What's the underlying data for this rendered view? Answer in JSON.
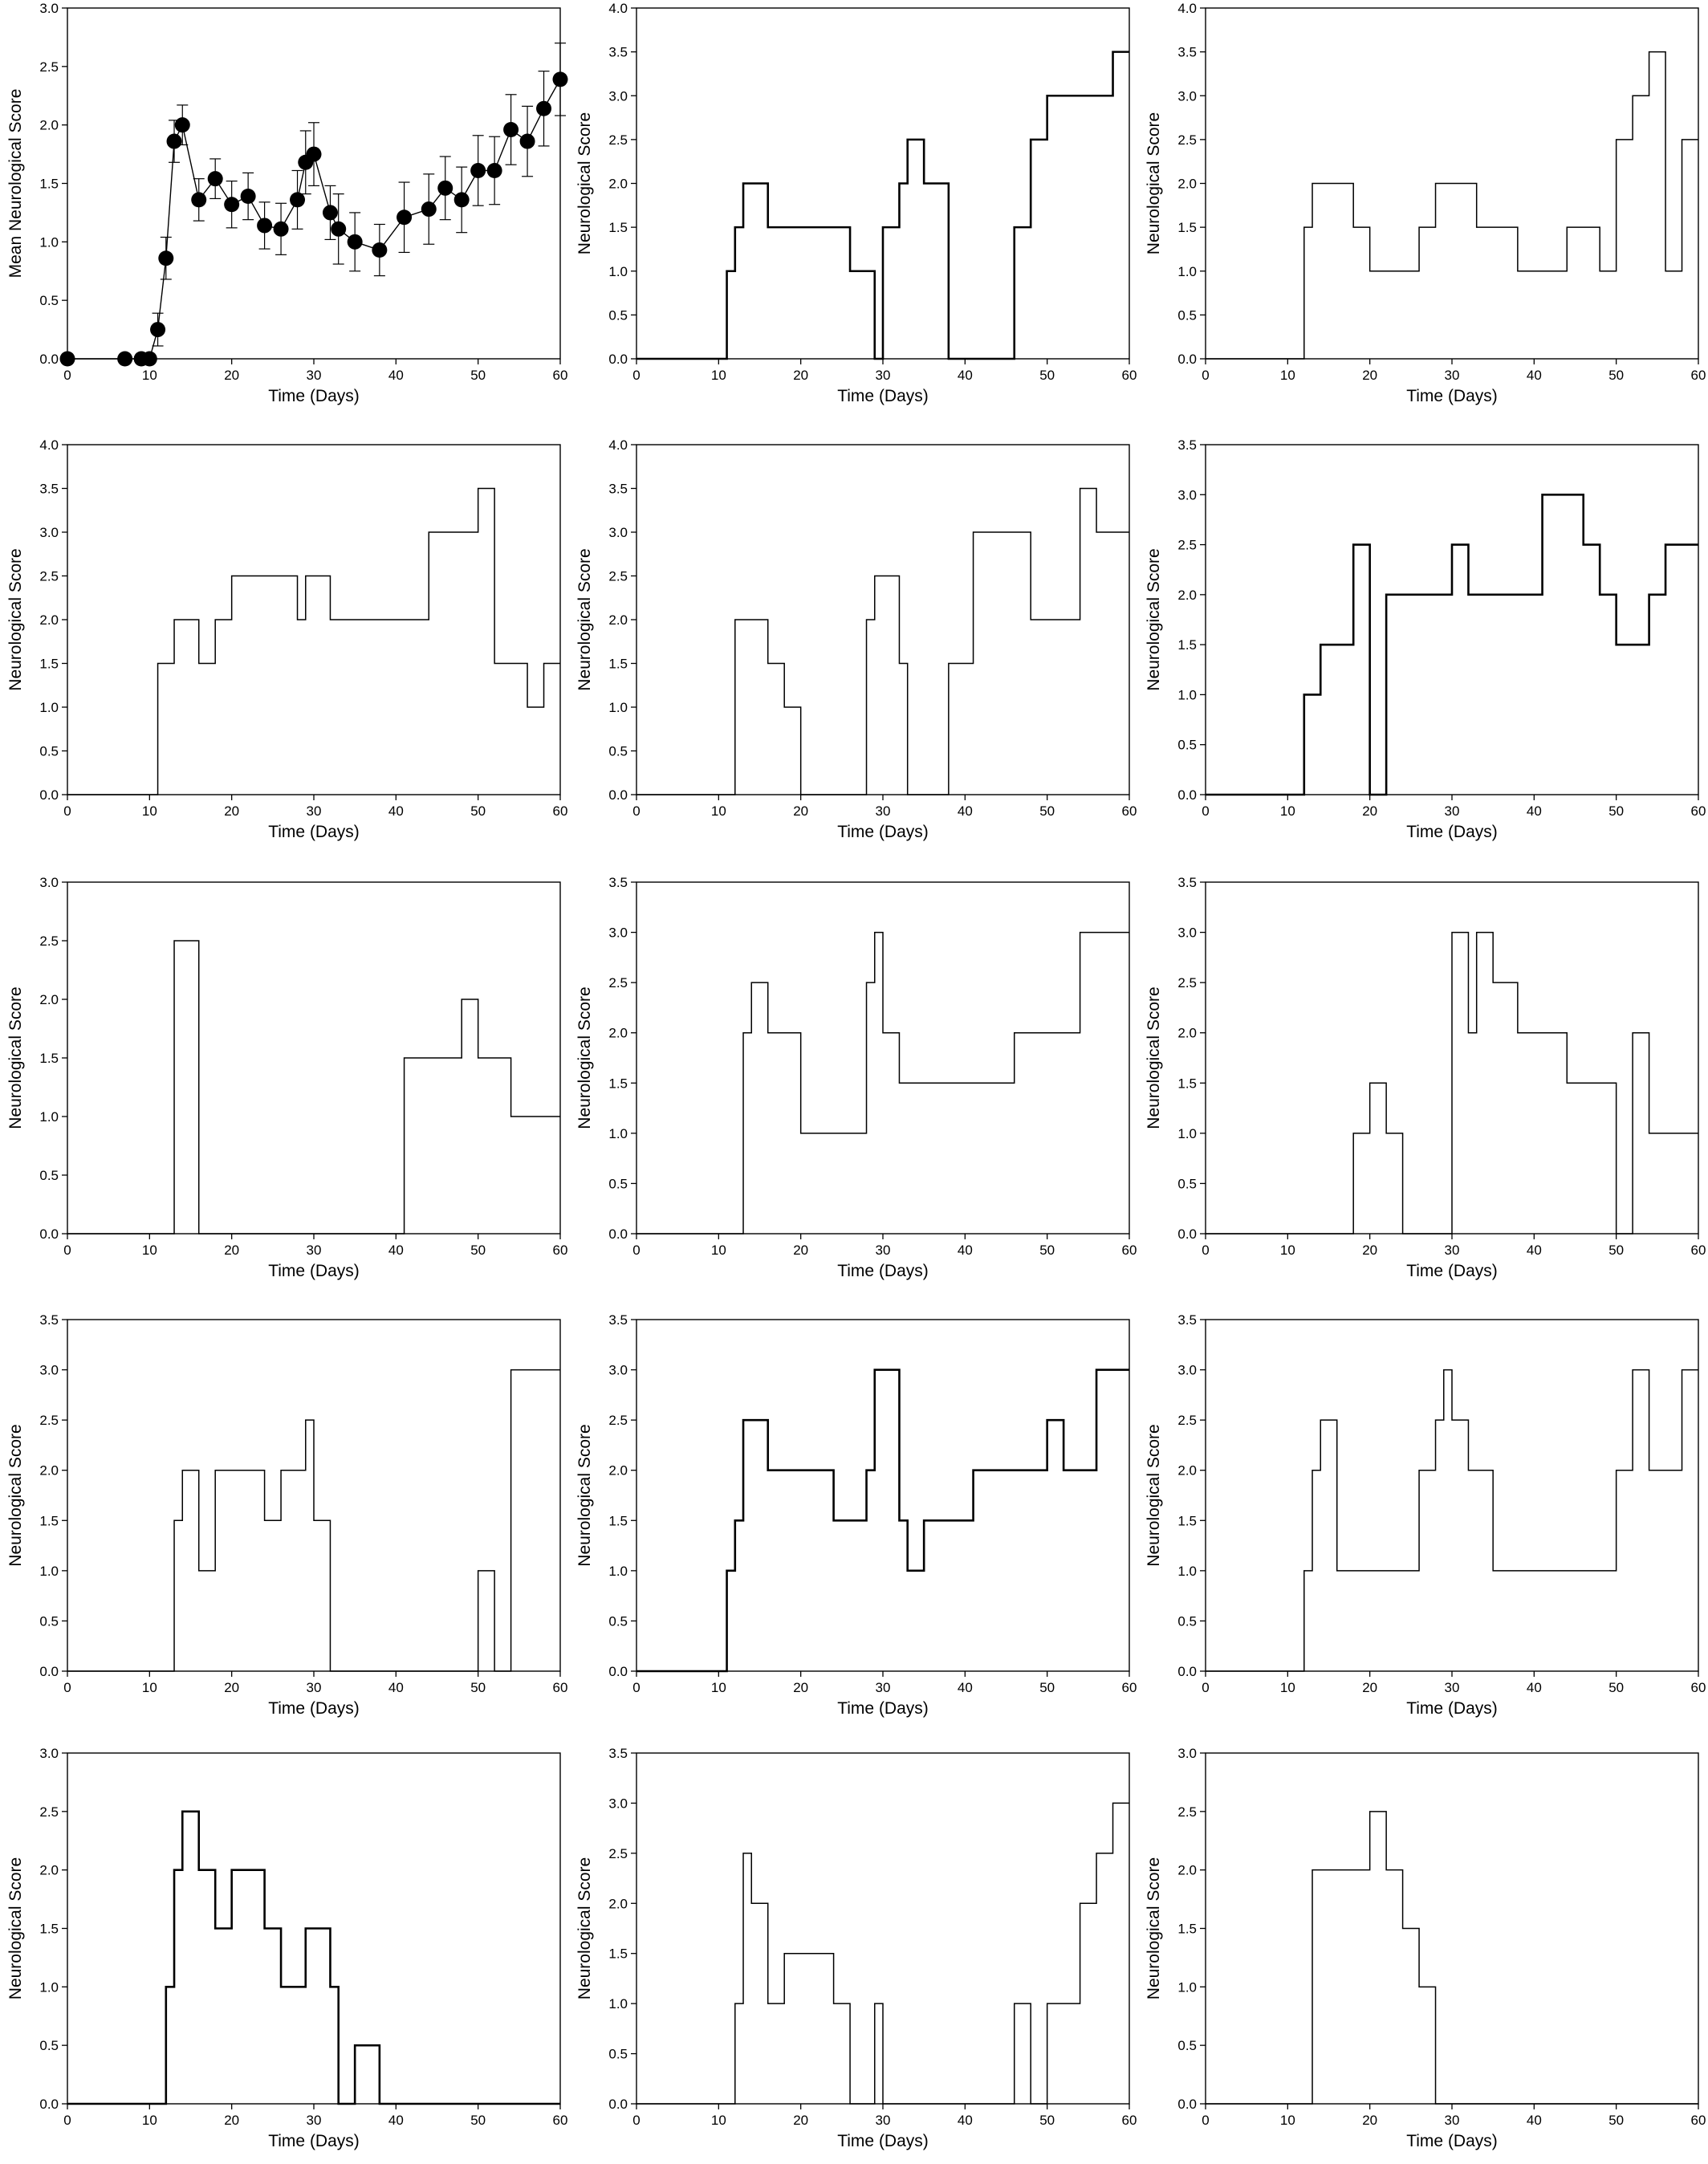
{
  "figure": {
    "description_free": true
  },
  "chart_data": [
    {
      "type": "line",
      "xlabel": "Time (Days)",
      "ylabel": "Mean Neurological Score",
      "xlim": [
        0,
        60
      ],
      "ylim": [
        0,
        3.0
      ],
      "xticks": [
        0,
        10,
        20,
        30,
        40,
        50,
        60
      ],
      "yticks": [
        0.0,
        0.5,
        1.0,
        1.5,
        2.0,
        2.5,
        3.0
      ],
      "x": [
        0,
        7,
        9,
        10,
        11,
        12,
        13,
        14,
        16,
        18,
        20,
        22,
        24,
        26,
        28,
        29,
        30,
        32,
        33,
        35,
        38,
        41,
        44,
        46,
        48,
        50,
        52,
        54,
        56,
        58,
        60
      ],
      "y": [
        0,
        0,
        0,
        0,
        0.25,
        0.86,
        1.86,
        2.0,
        1.36,
        1.54,
        1.32,
        1.39,
        1.14,
        1.11,
        1.36,
        1.68,
        1.75,
        1.25,
        1.11,
        1.0,
        0.93,
        1.21,
        1.28,
        1.46,
        1.36,
        1.61,
        1.61,
        1.96,
        1.86,
        2.14,
        2.39
      ],
      "error": [
        0,
        0,
        0,
        0,
        0.14,
        0.18,
        0.18,
        0.17,
        0.18,
        0.17,
        0.2,
        0.2,
        0.2,
        0.22,
        0.25,
        0.27,
        0.27,
        0.23,
        0.3,
        0.25,
        0.22,
        0.3,
        0.3,
        0.27,
        0.28,
        0.3,
        0.29,
        0.3,
        0.3,
        0.32,
        0.31
      ],
      "markers": true,
      "grid": false
    },
    {
      "type": "line",
      "step": true,
      "xlabel": "Time (Days)",
      "ylabel": "Neurological Score",
      "xlim": [
        0,
        60
      ],
      "ylim": [
        0,
        4.0
      ],
      "xticks": [
        0,
        10,
        20,
        30,
        40,
        50,
        60
      ],
      "yticks": [
        0.0,
        0.5,
        1.0,
        1.5,
        2.0,
        2.5,
        3.0,
        3.5,
        4.0
      ],
      "x": [
        0,
        11,
        12,
        13,
        16,
        26,
        29,
        30,
        32,
        33,
        35,
        38,
        46,
        48,
        50,
        58,
        60
      ],
      "y": [
        0,
        1.0,
        1.5,
        2.0,
        1.5,
        1.0,
        0,
        1.5,
        2.0,
        2.5,
        2.0,
        0,
        1.5,
        2.5,
        3.0,
        3.5,
        3.5
      ],
      "bold": true
    },
    {
      "type": "line",
      "step": true,
      "xlabel": "Time (Days)",
      "ylabel": "Neurological Score",
      "xlim": [
        0,
        60
      ],
      "ylim": [
        0,
        4.0
      ],
      "xticks": [
        0,
        10,
        20,
        30,
        40,
        50,
        60
      ],
      "yticks": [
        0.0,
        0.5,
        1.0,
        1.5,
        2.0,
        2.5,
        3.0,
        3.5,
        4.0
      ],
      "x": [
        0,
        12,
        13,
        18,
        20,
        26,
        28,
        33,
        38,
        44,
        48,
        50,
        52,
        54,
        56,
        58,
        60
      ],
      "y": [
        0,
        1.5,
        2.0,
        1.5,
        1.0,
        1.5,
        2.0,
        1.5,
        1.0,
        1.5,
        1.0,
        2.5,
        3.0,
        3.5,
        1.0,
        2.5,
        2.5
      ]
    },
    {
      "type": "line",
      "step": true,
      "xlabel": "Time (Days)",
      "ylabel": "Neurological Score",
      "xlim": [
        0,
        60
      ],
      "ylim": [
        0,
        4.0
      ],
      "xticks": [
        0,
        10,
        20,
        30,
        40,
        50,
        60
      ],
      "yticks": [
        0.0,
        0.5,
        1.0,
        1.5,
        2.0,
        2.5,
        3.0,
        3.5,
        4.0
      ],
      "x": [
        0,
        11,
        13,
        16,
        18,
        20,
        28,
        29,
        32,
        44,
        50,
        52,
        56,
        58,
        60
      ],
      "y": [
        0,
        1.5,
        2.0,
        1.5,
        2.0,
        2.5,
        2.0,
        2.5,
        2.0,
        3.0,
        3.5,
        1.5,
        1.0,
        1.5,
        1.5
      ]
    },
    {
      "type": "line",
      "step": true,
      "xlabel": "Time (Days)",
      "ylabel": "Neurological Score",
      "xlim": [
        0,
        60
      ],
      "ylim": [
        0,
        4.0
      ],
      "xticks": [
        0,
        10,
        20,
        30,
        40,
        50,
        60
      ],
      "yticks": [
        0.0,
        0.5,
        1.0,
        1.5,
        2.0,
        2.5,
        3.0,
        3.5,
        4.0
      ],
      "x": [
        0,
        12,
        16,
        18,
        20,
        28,
        29,
        32,
        33,
        38,
        41,
        48,
        54,
        56,
        60
      ],
      "y": [
        0,
        2.0,
        1.5,
        1.0,
        0,
        2.0,
        2.5,
        1.5,
        0,
        1.5,
        3.0,
        2.0,
        3.5,
        3.0,
        3.0
      ]
    },
    {
      "type": "line",
      "step": true,
      "xlabel": "Time (Days)",
      "ylabel": "Neurological Score",
      "xlim": [
        0,
        60
      ],
      "ylim": [
        0,
        3.5
      ],
      "xticks": [
        0,
        10,
        20,
        30,
        40,
        50,
        60
      ],
      "yticks": [
        0.0,
        0.5,
        1.0,
        1.5,
        2.0,
        2.5,
        3.0,
        3.5
      ],
      "x": [
        0,
        12,
        14,
        18,
        20,
        22,
        30,
        32,
        41,
        46,
        48,
        50,
        54,
        56,
        58,
        60
      ],
      "y": [
        0,
        1.0,
        1.5,
        2.5,
        0,
        2.0,
        2.5,
        2.0,
        3.0,
        2.5,
        2.0,
        1.5,
        2.0,
        2.5,
        2.5,
        2.5
      ],
      "bold": true
    },
    {
      "type": "line",
      "step": true,
      "xlabel": "Time (Days)",
      "ylabel": "Neurological Score",
      "xlim": [
        0,
        60
      ],
      "ylim": [
        0,
        3.0
      ],
      "xticks": [
        0,
        10,
        20,
        30,
        40,
        50,
        60
      ],
      "yticks": [
        0.0,
        0.5,
        1.0,
        1.5,
        2.0,
        2.5,
        3.0
      ],
      "x": [
        0,
        13,
        16,
        41,
        48,
        50,
        54,
        60
      ],
      "y": [
        0,
        2.5,
        0,
        1.5,
        2.0,
        1.5,
        1.0,
        1.0
      ]
    },
    {
      "type": "line",
      "step": true,
      "xlabel": "Time (Days)",
      "ylabel": "Neurological Score",
      "xlim": [
        0,
        60
      ],
      "ylim": [
        0,
        3.5
      ],
      "xticks": [
        0,
        10,
        20,
        30,
        40,
        50,
        60
      ],
      "yticks": [
        0.0,
        0.5,
        1.0,
        1.5,
        2.0,
        2.5,
        3.0,
        3.5
      ],
      "x": [
        0,
        13,
        14,
        16,
        20,
        28,
        29,
        30,
        32,
        46,
        54,
        60
      ],
      "y": [
        0,
        2.0,
        2.5,
        2.0,
        1.0,
        2.5,
        3.0,
        2.0,
        1.5,
        2.0,
        3.0,
        3.0
      ]
    },
    {
      "type": "line",
      "step": true,
      "xlabel": "Time (Days)",
      "ylabel": "Neurological Score",
      "xlim": [
        0,
        60
      ],
      "ylim": [
        0,
        3.5
      ],
      "xticks": [
        0,
        10,
        20,
        30,
        40,
        50,
        60
      ],
      "yticks": [
        0.0,
        0.5,
        1.0,
        1.5,
        2.0,
        2.5,
        3.0,
        3.5
      ],
      "x": [
        0,
        18,
        20,
        22,
        24,
        30,
        32,
        33,
        35,
        38,
        44,
        50,
        52,
        54,
        60
      ],
      "y": [
        0,
        1.0,
        1.5,
        1.0,
        0,
        3.0,
        2.0,
        3.0,
        2.5,
        2.0,
        1.5,
        0,
        2.0,
        1.0,
        1.0
      ]
    },
    {
      "type": "line",
      "step": true,
      "xlabel": "Time (Days)",
      "ylabel": "Neurological Score",
      "xlim": [
        0,
        60
      ],
      "ylim": [
        0,
        3.5
      ],
      "xticks": [
        0,
        10,
        20,
        30,
        40,
        50,
        60
      ],
      "yticks": [
        0.0,
        0.5,
        1.0,
        1.5,
        2.0,
        2.5,
        3.0,
        3.5
      ],
      "x": [
        0,
        13,
        14,
        16,
        18,
        24,
        26,
        29,
        30,
        32,
        50,
        52,
        54,
        60
      ],
      "y": [
        0,
        1.5,
        2.0,
        1.0,
        2.0,
        1.5,
        2.0,
        2.5,
        1.5,
        0,
        1.0,
        0,
        3.0,
        3.0
      ]
    },
    {
      "type": "line",
      "step": true,
      "xlabel": "Time (Days)",
      "ylabel": "Neurological Score",
      "xlim": [
        0,
        60
      ],
      "ylim": [
        0,
        3.5
      ],
      "xticks": [
        0,
        10,
        20,
        30,
        40,
        50,
        60
      ],
      "yticks": [
        0.0,
        0.5,
        1.0,
        1.5,
        2.0,
        2.5,
        3.0,
        3.5
      ],
      "x": [
        0,
        11,
        12,
        13,
        16,
        24,
        28,
        29,
        32,
        33,
        35,
        41,
        50,
        52,
        56,
        60
      ],
      "y": [
        0,
        1.0,
        1.5,
        2.5,
        2.0,
        1.5,
        2.0,
        3.0,
        1.5,
        1.0,
        1.5,
        2.0,
        2.5,
        2.0,
        3.0,
        3.0
      ],
      "bold": true
    },
    {
      "type": "line",
      "step": true,
      "xlabel": "Time (Days)",
      "ylabel": "Neurological Score",
      "xlim": [
        0,
        60
      ],
      "ylim": [
        0,
        3.5
      ],
      "xticks": [
        0,
        10,
        20,
        30,
        40,
        50,
        60
      ],
      "yticks": [
        0.0,
        0.5,
        1.0,
        1.5,
        2.0,
        2.5,
        3.0,
        3.5
      ],
      "x": [
        0,
        12,
        13,
        14,
        16,
        26,
        28,
        29,
        30,
        32,
        35,
        50,
        52,
        54,
        56,
        58,
        60
      ],
      "y": [
        0,
        1.0,
        2.0,
        2.5,
        1.0,
        2.0,
        2.5,
        3.0,
        2.5,
        2.0,
        1.0,
        2.0,
        3.0,
        2.0,
        2.0,
        3.0,
        3.0
      ]
    },
    {
      "type": "line",
      "step": true,
      "xlabel": "Time (Days)",
      "ylabel": "Neurological Score",
      "xlim": [
        0,
        60
      ],
      "ylim": [
        0,
        3.0
      ],
      "xticks": [
        0,
        10,
        20,
        30,
        40,
        50,
        60
      ],
      "yticks": [
        0.0,
        0.5,
        1.0,
        1.5,
        2.0,
        2.5,
        3.0
      ],
      "x": [
        0,
        12,
        13,
        14,
        16,
        18,
        20,
        24,
        26,
        29,
        32,
        33,
        35,
        38,
        60
      ],
      "y": [
        0,
        1.0,
        2.0,
        2.5,
        2.0,
        1.5,
        2.0,
        1.5,
        1.0,
        1.5,
        1.0,
        0,
        0.5,
        0,
        0
      ],
      "bold": true
    },
    {
      "type": "line",
      "step": true,
      "xlabel": "Time (Days)",
      "ylabel": "Neurological Score",
      "xlim": [
        0,
        60
      ],
      "ylim": [
        0,
        3.5
      ],
      "xticks": [
        0,
        10,
        20,
        30,
        40,
        50,
        60
      ],
      "yticks": [
        0.0,
        0.5,
        1.0,
        1.5,
        2.0,
        2.5,
        3.0,
        3.5
      ],
      "x": [
        0,
        12,
        13,
        14,
        16,
        18,
        24,
        26,
        29,
        30,
        46,
        48,
        50,
        54,
        56,
        58,
        60
      ],
      "y": [
        0,
        1.0,
        2.5,
        2.0,
        1.0,
        1.5,
        1.0,
        0,
        1.0,
        0,
        1.0,
        0,
        1.0,
        2.0,
        2.5,
        3.0,
        3.0
      ]
    },
    {
      "type": "line",
      "step": true,
      "xlabel": "Time (Days)",
      "ylabel": "Neurological Score",
      "xlim": [
        0,
        60
      ],
      "ylim": [
        0,
        3.0
      ],
      "xticks": [
        0,
        10,
        20,
        30,
        40,
        50,
        60
      ],
      "yticks": [
        0.0,
        0.5,
        1.0,
        1.5,
        2.0,
        2.5,
        3.0
      ],
      "x": [
        0,
        13,
        20,
        22,
        24,
        26,
        28,
        60
      ],
      "y": [
        0,
        2.0,
        2.5,
        2.0,
        1.5,
        1.0,
        0,
        0
      ]
    }
  ]
}
